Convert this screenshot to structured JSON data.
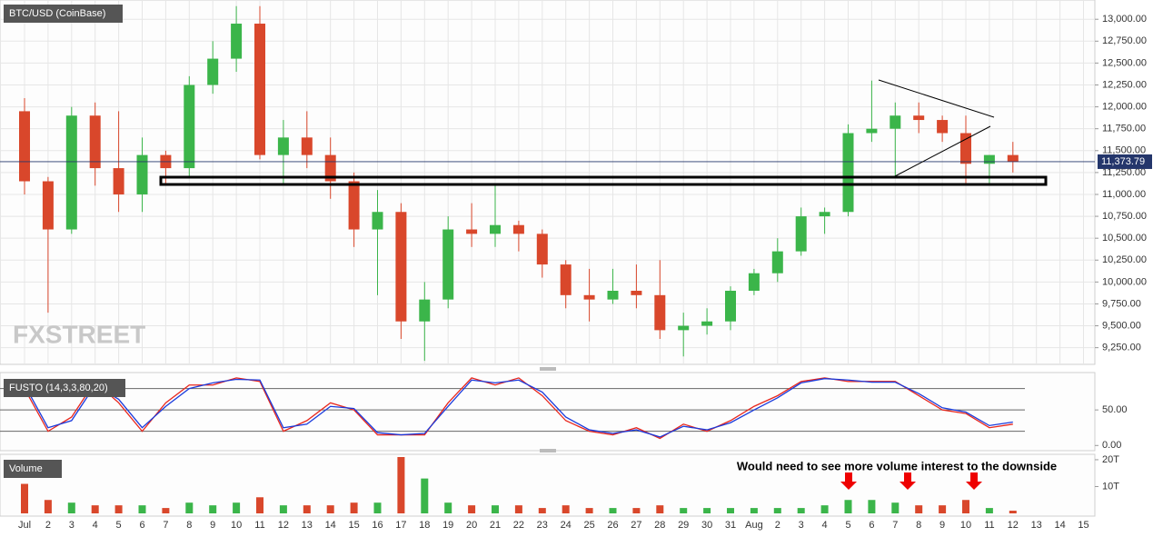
{
  "watermark": "FXSTREET",
  "chart_data": [
    {
      "type": "candlestick",
      "title": "BTC/USD (CoinBase)",
      "open": [
        11950,
        11150,
        10600,
        11900,
        11300,
        11000,
        11450,
        11300,
        12250,
        12550,
        12950,
        11450,
        11650,
        11450,
        11150,
        10600,
        10800,
        9550,
        9800,
        10600,
        10550,
        10650,
        10550,
        10200,
        9850,
        9800,
        9900,
        9850,
        9450,
        9500,
        9550,
        9900,
        10100,
        10350,
        10750,
        10800,
        11700,
        11750,
        11900,
        11850,
        11700,
        11350,
        11450,
        null,
        null,
        null
      ],
      "high": [
        12100,
        11200,
        12000,
        12050,
        11950,
        11650,
        11500,
        12350,
        12750,
        13150,
        13150,
        11850,
        11950,
        11650,
        11250,
        11050,
        10900,
        10000,
        10750,
        10900,
        11100,
        10700,
        10600,
        10250,
        10150,
        10150,
        10200,
        10250,
        9650,
        9700,
        9950,
        10150,
        10500,
        10850,
        10850,
        11800,
        12300,
        12050,
        12050,
        11900,
        11900,
        11450,
        11600,
        null,
        null,
        null
      ],
      "low": [
        11000,
        9650,
        10550,
        11100,
        10800,
        10800,
        11100,
        11200,
        12150,
        12400,
        11400,
        11100,
        11300,
        10950,
        10400,
        9850,
        9350,
        9100,
        9700,
        10400,
        10400,
        10350,
        10050,
        9700,
        9550,
        9750,
        9700,
        9350,
        9150,
        9400,
        9450,
        9850,
        10000,
        10300,
        10550,
        10750,
        11600,
        11200,
        11700,
        11600,
        11100,
        11100,
        11250,
        null,
        null,
        null
      ],
      "close": [
        11150,
        10600,
        11900,
        11300,
        11000,
        11450,
        11300,
        12250,
        12550,
        12950,
        11450,
        11650,
        11450,
        11150,
        10600,
        10800,
        9550,
        9800,
        10600,
        10550,
        10650,
        10550,
        10200,
        9850,
        9800,
        9900,
        9850,
        9450,
        9500,
        9550,
        9900,
        10100,
        10350,
        10750,
        10800,
        11700,
        11750,
        11900,
        11850,
        11700,
        11350,
        11450,
        11373.79,
        null,
        null,
        null
      ],
      "up_color": "#3bb54a",
      "down_color": "#d9472b",
      "last_price": {
        "value": 11373.79,
        "label": "11,373.79"
      },
      "last_price_color": "#24366b",
      "ylim": [
        9070,
        13220
      ],
      "yticks": [
        {
          "value": 9250,
          "label": "9,250.00"
        },
        {
          "value": 9500,
          "label": "9,500.00"
        },
        {
          "value": 9750,
          "label": "9,750.00"
        },
        {
          "value": 10000,
          "label": "10,000.00"
        },
        {
          "value": 10250,
          "label": "10,250.00"
        },
        {
          "value": 10500,
          "label": "10,500.00"
        },
        {
          "value": 10750,
          "label": "10,750.00"
        },
        {
          "value": 11000,
          "label": "11,000.00"
        },
        {
          "value": 11250,
          "label": "11,250.00"
        },
        {
          "value": 11500,
          "label": "11,500.00"
        },
        {
          "value": 11750,
          "label": "11,750.00"
        },
        {
          "value": 12000,
          "label": "12,000.00"
        },
        {
          "value": 12250,
          "label": "12,250.00"
        },
        {
          "value": 12500,
          "label": "12,500.00"
        },
        {
          "value": 12750,
          "label": "12,750.00"
        },
        {
          "value": 13000,
          "label": "13,000.00"
        }
      ],
      "grid": true
    },
    {
      "type": "line",
      "title": "FUSTO (14,3,3,80,20)",
      "series": [
        {
          "color": "#e8261c",
          "values": [
            80,
            20,
            40,
            90,
            60,
            20,
            60,
            85,
            85,
            95,
            90,
            20,
            35,
            60,
            50,
            15,
            15,
            15,
            60,
            95,
            85,
            95,
            70,
            35,
            20,
            15,
            25,
            10,
            30,
            20,
            35,
            55,
            70,
            90,
            95,
            90,
            90,
            90,
            70,
            50,
            45,
            25,
            30,
            null,
            null,
            null
          ]
        },
        {
          "color": "#1a3bdc",
          "values": [
            85,
            25,
            35,
            85,
            65,
            25,
            55,
            80,
            88,
            93,
            92,
            25,
            30,
            55,
            52,
            18,
            15,
            17,
            55,
            92,
            88,
            92,
            75,
            40,
            22,
            17,
            22,
            12,
            27,
            22,
            32,
            50,
            67,
            88,
            94,
            92,
            89,
            89,
            73,
            53,
            47,
            28,
            33,
            null,
            null,
            null
          ]
        }
      ],
      "levels": [
        20,
        50,
        80
      ],
      "ylim": [
        -6,
        100
      ],
      "yticks": [
        {
          "value": 50,
          "label": "50.00"
        },
        {
          "value": 0,
          "label": "0.00"
        }
      ]
    },
    {
      "type": "bar",
      "title": "Volume",
      "annotation": "Would need to see more volume interest to the downside",
      "categories": [
        "Jul",
        "2",
        "3",
        "4",
        "5",
        "6",
        "7",
        "8",
        "9",
        "10",
        "11",
        "12",
        "13",
        "14",
        "15",
        "16",
        "17",
        "18",
        "19",
        "20",
        "21",
        "22",
        "23",
        "24",
        "25",
        "26",
        "27",
        "28",
        "29",
        "30",
        "31",
        "Aug",
        "2",
        "3",
        "4",
        "5",
        "6",
        "7",
        "8",
        "9",
        "10",
        "11",
        "12",
        "13",
        "14",
        "15"
      ],
      "values": [
        11,
        5,
        4,
        3,
        3,
        3,
        2,
        4,
        3,
        4,
        6,
        3,
        3,
        3,
        4,
        4,
        21,
        13,
        4,
        3,
        3,
        3,
        2,
        3,
        2,
        2,
        2,
        3,
        2,
        2,
        2,
        2,
        2,
        2,
        3,
        5,
        5,
        4,
        3,
        3,
        5,
        2,
        1,
        null,
        null,
        null
      ],
      "ylim": [
        0,
        21
      ],
      "yticks": [
        {
          "value": 10,
          "label": "10T"
        },
        {
          "value": 20,
          "label": "20T"
        }
      ]
    }
  ]
}
